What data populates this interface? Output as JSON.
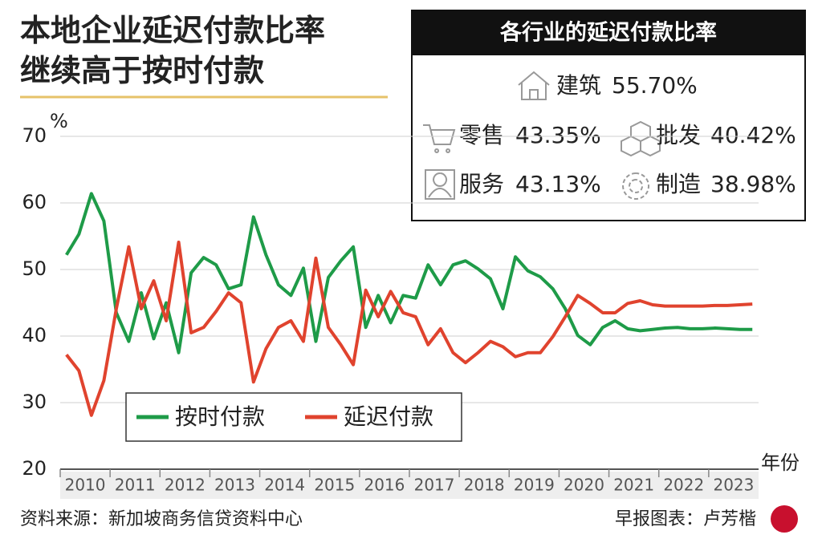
{
  "chart_data": {
    "type": "line",
    "title": "本地企业延迟付款比率\n继续高于按时付款",
    "y_unit": "%",
    "x_unit": "年份",
    "xlim": [
      2010,
      2024
    ],
    "xticks": [
      2010,
      2011,
      2012,
      2013,
      2014,
      2015,
      2016,
      2017,
      2018,
      2019,
      2020,
      2021,
      2022,
      2023
    ],
    "ylim": [
      20,
      70
    ],
    "yticks": [
      20,
      30,
      40,
      50,
      60,
      70
    ],
    "grid": true,
    "x": [
      2010.125,
      2010.375,
      2010.625,
      2010.875,
      2011.125,
      2011.375,
      2011.625,
      2011.875,
      2012.125,
      2012.375,
      2012.625,
      2012.875,
      2013.125,
      2013.375,
      2013.625,
      2013.875,
      2014.125,
      2014.375,
      2014.625,
      2014.875,
      2015.125,
      2015.375,
      2015.625,
      2015.875,
      2016.125,
      2016.375,
      2016.625,
      2016.875,
      2017.125,
      2017.375,
      2017.625,
      2017.875,
      2018.125,
      2018.375,
      2018.625,
      2018.875,
      2019.125,
      2019.375,
      2019.625,
      2019.875,
      2020.125,
      2020.375,
      2020.625,
      2020.875,
      2021.125,
      2021.375,
      2021.625,
      2021.875,
      2022.125,
      2022.375,
      2022.625,
      2022.875,
      2023.125,
      2023.375,
      2023.625,
      2023.875
    ],
    "series": [
      {
        "name": "按时付款",
        "color": "#1e9b48",
        "values": [
          52.2,
          55.3,
          61.4,
          57.3,
          43.5,
          39.2,
          46.5,
          39.6,
          45,
          37.5,
          49.5,
          51.8,
          50.7,
          47.1,
          47.7,
          57.9,
          52.2,
          47.7,
          46.1,
          50.2,
          39.2,
          48.8,
          51.3,
          53.4,
          41.3,
          46.1,
          42.0,
          46.1,
          45.7,
          50.7,
          47.7,
          50.7,
          51.3,
          50.1,
          48.6,
          44.1,
          51.9,
          49.8,
          48.9,
          47.1,
          44.1,
          40.1,
          38.7,
          41.3,
          42.3,
          41.1,
          40.8,
          41.0,
          41.2,
          41.3,
          41.1,
          41.1,
          41.2,
          41.1,
          41.0,
          41.0
        ]
      },
      {
        "name": "延迟付款",
        "color": "#e0432e",
        "values": [
          37.2,
          34.8,
          28.1,
          33.3,
          44.1,
          53.4,
          44.1,
          48.3,
          42.3,
          54.1,
          40.5,
          41.3,
          43.7,
          46.5,
          45,
          33.1,
          38.1,
          41.3,
          42.3,
          39.2,
          51.7,
          41.3,
          38.7,
          35.7,
          46.9,
          42.9,
          46.7,
          43.5,
          42.9,
          38.7,
          41.1,
          37.5,
          36.0,
          37.5,
          39.2,
          38.4,
          36.9,
          37.5,
          37.5,
          39.9,
          42.9,
          46.1,
          44.9,
          43.5,
          43.5,
          44.9,
          45.3,
          44.7,
          44.5,
          44.5,
          44.5,
          44.5,
          44.6,
          44.6,
          44.7,
          44.8
        ]
      }
    ],
    "info_box": {
      "title": "各行业的延迟付款比率",
      "items": [
        {
          "label": "建筑",
          "value": "55.70%"
        },
        {
          "label": "零售",
          "value": "43.35%"
        },
        {
          "label": "批发",
          "value": "40.42%"
        },
        {
          "label": "服务",
          "value": "43.13%"
        },
        {
          "label": "制造",
          "value": "38.98%"
        }
      ]
    },
    "source": "资料来源：新加坡商务信贷资料中心",
    "credit": "早报图表：卢芳楷"
  }
}
